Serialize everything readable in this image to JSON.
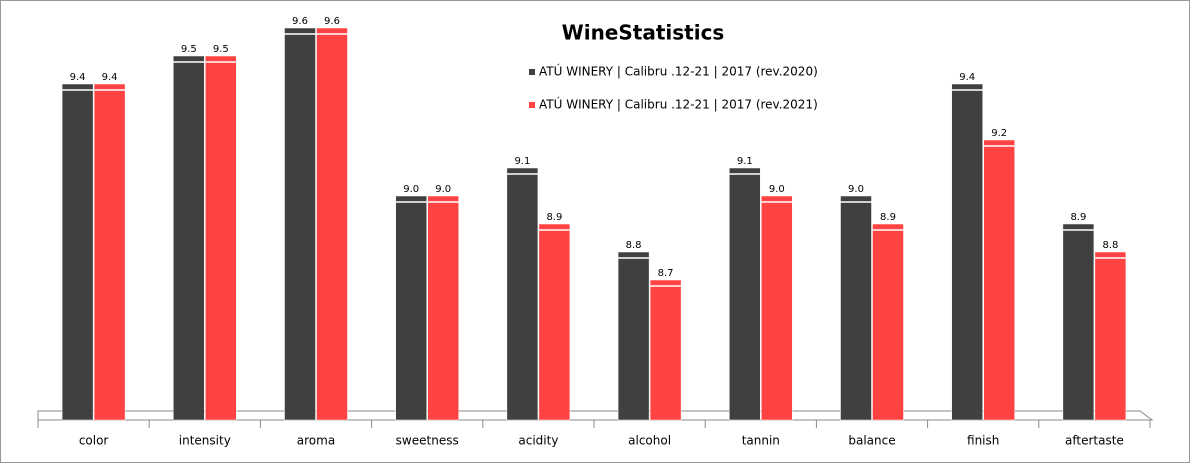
{
  "chart_data": {
    "type": "bar",
    "title": "WineStatistics",
    "categories": [
      "color",
      "intensity",
      "aroma",
      "sweetness",
      "acidity",
      "alcohol",
      "tannin",
      "balance",
      "finish",
      "aftertaste"
    ],
    "series": [
      {
        "name": "ATÚ WINERY  | Calibru .12-21  | 2017 (rev.2020)",
        "color": "#404040",
        "values": [
          9.4,
          9.5,
          9.6,
          9.0,
          9.1,
          8.8,
          9.1,
          9.0,
          9.4,
          8.9
        ],
        "value_labels": [
          "9.4",
          "9.5",
          "9.6",
          "9.0",
          "9.1",
          "8.8",
          "9.1",
          "9.0",
          "9.4",
          "8.9"
        ]
      },
      {
        "name": "ATÚ WINERY  | Calibru .12-21  | 2017 (rev.2021)",
        "color": "#ff4242",
        "values": [
          9.4,
          9.5,
          9.6,
          9.0,
          8.9,
          8.7,
          9.0,
          8.9,
          9.2,
          8.8
        ],
        "value_labels": [
          "9.4",
          "9.5",
          "9.6",
          "9.0",
          "8.9",
          "8.7",
          "9.0",
          "8.9",
          "9.2",
          "8.8"
        ]
      }
    ],
    "ylim": [
      8.2,
      9.7
    ]
  }
}
